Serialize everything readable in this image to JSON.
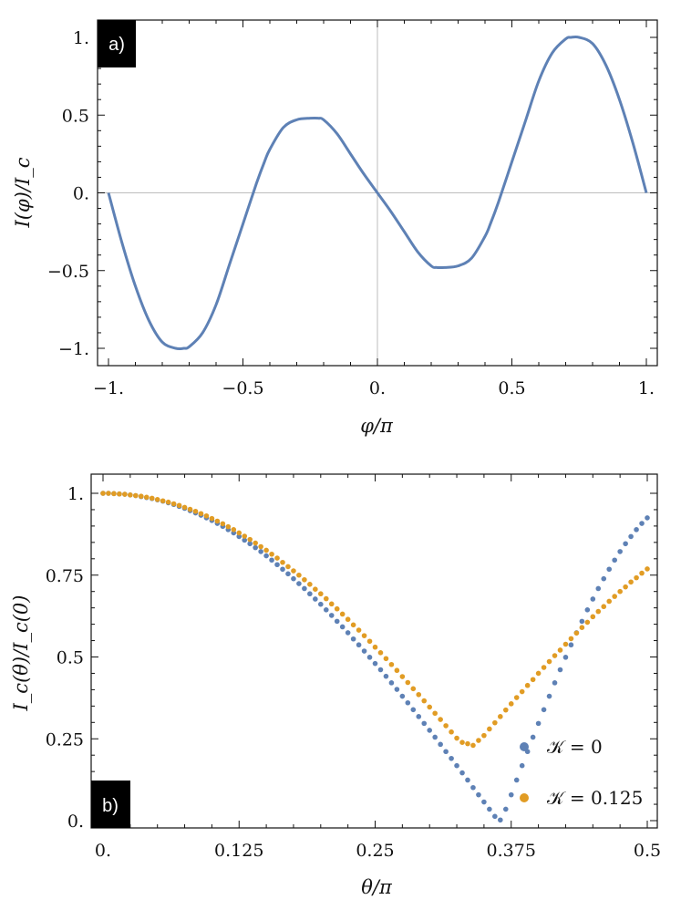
{
  "chart_data": [
    {
      "type": "line",
      "panel": "a)",
      "xlabel": "φ/π",
      "ylabel": "I(φ)/I_c",
      "xlim": [
        -1.0,
        1.0
      ],
      "ylim": [
        -1.1,
        1.1
      ],
      "xticks": [
        -1,
        -0.5,
        0,
        0.5,
        1
      ],
      "xtick_labels": [
        "−1.",
        "−0.5",
        "0.",
        "0.5",
        "1."
      ],
      "yticks": [
        -1,
        -0.5,
        0,
        0.5,
        1
      ],
      "ytick_labels": [
        "−1.",
        "−0.5",
        "0.",
        "0.5",
        "1."
      ],
      "zero_lines": true,
      "series": [
        {
          "name": "I(φ)/I_c",
          "color": "#5E81B5",
          "x": [
            -1.0,
            -0.95,
            -0.9,
            -0.85,
            -0.8,
            -0.75,
            -0.72,
            -0.7,
            -0.65,
            -0.6,
            -0.55,
            -0.5,
            -0.45,
            -0.42,
            -0.4,
            -0.35,
            -0.3,
            -0.25,
            -0.22,
            -0.2,
            -0.15,
            -0.1,
            -0.05,
            0.0,
            0.05,
            0.1,
            0.15,
            0.2,
            0.22,
            0.25,
            0.3,
            0.35,
            0.4,
            0.42,
            0.45,
            0.5,
            0.55,
            0.6,
            0.65,
            0.7,
            0.72,
            0.75,
            0.8,
            0.85,
            0.9,
            0.95,
            1.0
          ],
          "y": [
            0.0,
            -0.32,
            -0.6,
            -0.82,
            -0.96,
            -1.0,
            -1.0,
            -0.99,
            -0.9,
            -0.72,
            -0.46,
            -0.2,
            0.06,
            0.2,
            0.28,
            0.42,
            0.47,
            0.48,
            0.48,
            0.47,
            0.38,
            0.25,
            0.12,
            0.0,
            -0.12,
            -0.25,
            -0.38,
            -0.47,
            -0.48,
            -0.48,
            -0.47,
            -0.42,
            -0.28,
            -0.2,
            -0.06,
            0.2,
            0.46,
            0.72,
            0.9,
            0.99,
            1.0,
            1.0,
            0.96,
            0.82,
            0.6,
            0.32,
            0.0
          ]
        }
      ]
    },
    {
      "type": "scatter",
      "panel": "b)",
      "xlabel": "θ/π",
      "ylabel": "I_c(θ)/I_c(0)",
      "xlim": [
        0,
        0.5
      ],
      "ylim": [
        0,
        1
      ],
      "xticks": [
        0,
        0.125,
        0.25,
        0.375,
        0.5
      ],
      "xtick_labels": [
        "0.",
        "0.125",
        "0.25",
        "0.375",
        "0.5"
      ],
      "yticks": [
        0,
        0.25,
        0.5,
        0.75,
        1
      ],
      "ytick_labels": [
        "0.",
        "0.25",
        "0.5",
        "0.75",
        "1."
      ],
      "legend_position": "bottom-right",
      "series": [
        {
          "name": "𝒦 = 0",
          "color": "#5E81B5",
          "n_points": 101,
          "x_range": [
            0,
            0.5
          ],
          "y": [
            1.0,
            1.0,
            0.999,
            0.998,
            0.997,
            0.995,
            0.993,
            0.99,
            0.987,
            0.984,
            0.98,
            0.976,
            0.971,
            0.966,
            0.96,
            0.954,
            0.947,
            0.94,
            0.933,
            0.925,
            0.917,
            0.908,
            0.899,
            0.889,
            0.879,
            0.868,
            0.857,
            0.846,
            0.834,
            0.822,
            0.809,
            0.796,
            0.782,
            0.768,
            0.754,
            0.739,
            0.724,
            0.709,
            0.693,
            0.677,
            0.661,
            0.644,
            0.627,
            0.609,
            0.592,
            0.574,
            0.555,
            0.537,
            0.518,
            0.499,
            0.48,
            0.461,
            0.441,
            0.421,
            0.401,
            0.38,
            0.36,
            0.339,
            0.318,
            0.297,
            0.276,
            0.255,
            0.233,
            0.211,
            0.19,
            0.168,
            0.146,
            0.124,
            0.101,
            0.079,
            0.057,
            0.035,
            0.013,
            0.002,
            0.035,
            0.079,
            0.124,
            0.168,
            0.211,
            0.255,
            0.297,
            0.339,
            0.38,
            0.421,
            0.461,
            0.499,
            0.537,
            0.574,
            0.609,
            0.644,
            0.677,
            0.709,
            0.739,
            0.768,
            0.796,
            0.822,
            0.846,
            0.868,
            0.889,
            0.908,
            0.925
          ]
        },
        {
          "name": "𝒦 = 0.125",
          "color": "#E19C24",
          "n_points": 101,
          "x_range": [
            0,
            0.5
          ],
          "y": [
            1.0,
            1.0,
            0.999,
            0.998,
            0.997,
            0.995,
            0.993,
            0.991,
            0.988,
            0.985,
            0.981,
            0.977,
            0.973,
            0.968,
            0.963,
            0.957,
            0.951,
            0.945,
            0.938,
            0.931,
            0.923,
            0.915,
            0.907,
            0.898,
            0.889,
            0.879,
            0.869,
            0.859,
            0.848,
            0.837,
            0.826,
            0.814,
            0.802,
            0.789,
            0.776,
            0.763,
            0.75,
            0.736,
            0.722,
            0.707,
            0.693,
            0.678,
            0.662,
            0.647,
            0.631,
            0.615,
            0.598,
            0.582,
            0.565,
            0.548,
            0.53,
            0.513,
            0.495,
            0.477,
            0.459,
            0.44,
            0.422,
            0.403,
            0.385,
            0.366,
            0.347,
            0.328,
            0.309,
            0.29,
            0.271,
            0.252,
            0.239,
            0.235,
            0.23,
            0.245,
            0.26,
            0.28,
            0.299,
            0.318,
            0.338,
            0.357,
            0.376,
            0.394,
            0.413,
            0.431,
            0.45,
            0.468,
            0.486,
            0.504,
            0.521,
            0.539,
            0.556,
            0.573,
            0.59,
            0.606,
            0.623,
            0.639,
            0.654,
            0.67,
            0.685,
            0.7,
            0.714,
            0.729,
            0.742,
            0.756,
            0.769
          ]
        }
      ]
    }
  ],
  "labels": {
    "panel_a": "a)",
    "panel_b": "b)",
    "a_xlabel": "φ/π",
    "a_ylabel": "I(φ)/I_c",
    "b_xlabel": "θ/π",
    "b_ylabel": "I_c(θ)/I_c(0)",
    "legend_0": "𝒦 = 0",
    "legend_1": "𝒦 = 0.125"
  }
}
